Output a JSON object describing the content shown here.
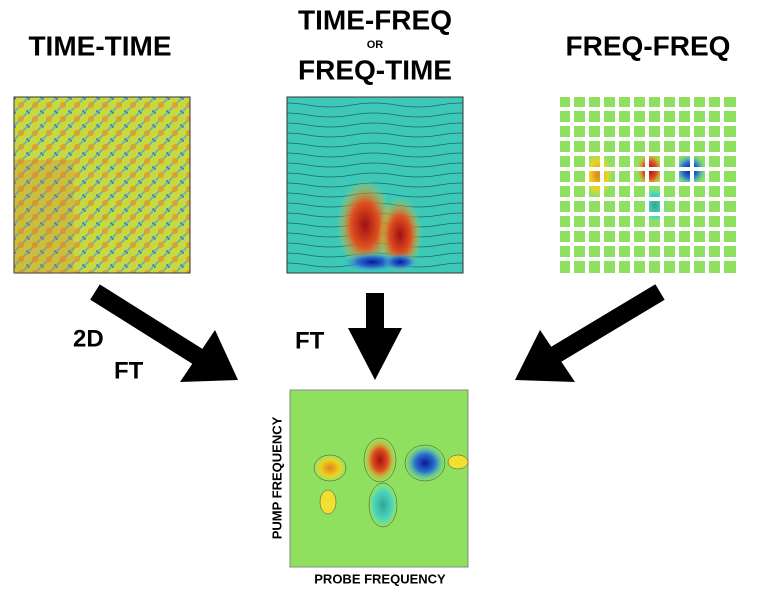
{
  "panels": [
    {
      "title": "TIME-TIME"
    },
    {
      "title": "TIME-FREQ",
      "connector": "OR",
      "title_alt": "FREQ-TIME"
    },
    {
      "title": "FREQ-FREQ"
    }
  ],
  "arrows": {
    "left": [
      "2D",
      "FT"
    ],
    "middle": "FT"
  },
  "result": {
    "y_axis": "PUMP FREQUENCY",
    "x_axis": "PROBE FREQUENCY"
  }
}
